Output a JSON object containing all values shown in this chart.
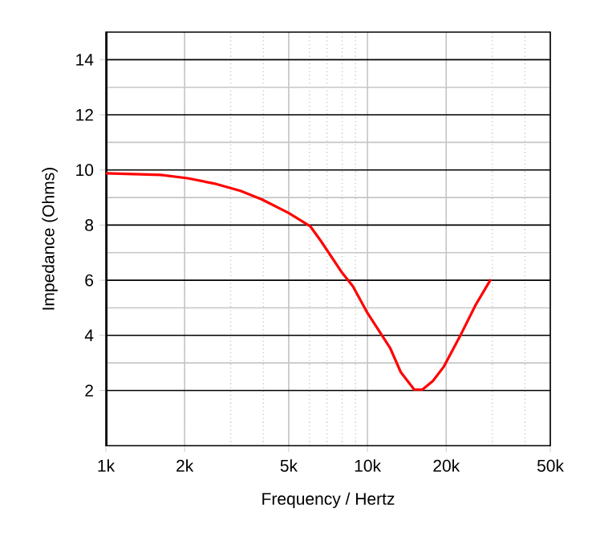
{
  "chart_data": {
    "type": "line",
    "xlabel": "Frequency / Hertz",
    "ylabel": "Impedance (Ohms)",
    "log": "x",
    "x": [
      1000,
      1620,
      2050,
      2590,
      3270,
      3950,
      5000,
      6040,
      6630,
      8000,
      8800,
      10000,
      12200,
      13400,
      15100,
      16200,
      17800,
      19600,
      22500,
      25900,
      29600
    ],
    "series": [
      {
        "color": "#ff0000",
        "values": [
          9.88,
          9.82,
          9.7,
          9.51,
          9.24,
          8.93,
          8.44,
          7.96,
          7.43,
          6.27,
          5.78,
          4.81,
          3.55,
          2.67,
          2.03,
          2.03,
          2.35,
          2.87,
          3.94,
          5.1,
          6.03
        ]
      }
    ],
    "xlim": [
      1000,
      50000
    ],
    "ylim": [
      0,
      15
    ],
    "xticks": [
      {
        "value": 1000,
        "label": "1k"
      },
      {
        "value": 2000,
        "label": "2k"
      },
      {
        "value": 5000,
        "label": "5k"
      },
      {
        "value": 10000,
        "label": "10k"
      },
      {
        "value": 20000,
        "label": "20k"
      },
      {
        "value": 50000,
        "label": "50k"
      }
    ],
    "yticks": [
      2,
      4,
      6,
      8,
      10,
      12,
      14
    ],
    "grid": true,
    "marker": "none",
    "line_style": "solid"
  }
}
